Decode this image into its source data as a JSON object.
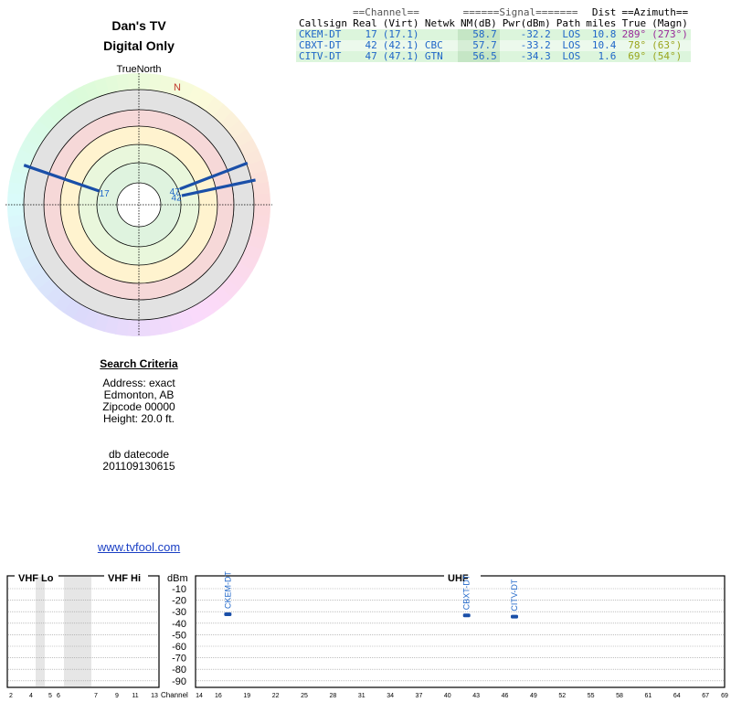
{
  "header": {
    "title_line1": "Dan's TV",
    "title_line2": "Digital Only",
    "true_north_label": "TrueNorth",
    "north_marker": "N"
  },
  "table": {
    "group_headers": {
      "channel": "==Channel==",
      "signal": "======Signal=======",
      "dist": "Dist",
      "azimuth": "==Azimuth=="
    },
    "columns": [
      "Callsign",
      "Real",
      "(Virt)",
      "Netwk",
      "NM(dB)",
      "Pwr(dBm)",
      "Path",
      "miles",
      "True",
      "(Magn)"
    ],
    "rows": [
      {
        "callsign": "CKEM-DT",
        "real": "17",
        "virt": "(17.1)",
        "netwk": "",
        "nm": "58.7",
        "pwr": "-32.2",
        "path": "LOS",
        "miles": "10.8",
        "true_az": "289°",
        "magn_az": "(273°)",
        "az_color": "#9a2b9a"
      },
      {
        "callsign": "CBXT-DT",
        "real": "42",
        "virt": "(42.1)",
        "netwk": "CBC",
        "nm": "57.7",
        "pwr": "-33.2",
        "path": "LOS",
        "miles": "10.4",
        "true_az": "78°",
        "magn_az": "(63°)",
        "az_color": "#9aa51d"
      },
      {
        "callsign": "CITV-DT",
        "real": "47",
        "virt": "(47.1)",
        "netwk": "GTN",
        "nm": "56.5",
        "pwr": "-34.3",
        "path": "LOS",
        "miles": "1.6",
        "true_az": "69°",
        "magn_az": "(54°)",
        "az_color": "#9aa51d"
      }
    ]
  },
  "polar": {
    "stations": [
      {
        "label": "17",
        "azimuth": 289,
        "nm": 58.7
      },
      {
        "label": "42",
        "azimuth": 78,
        "nm": 57.7
      },
      {
        "label": "47",
        "azimuth": 69,
        "nm": 56.5
      }
    ]
  },
  "criteria": {
    "title": "Search Criteria",
    "address": "Address: exact",
    "city": "Edmonton, AB",
    "zipcode": "Zipcode 00000",
    "height": "Height: 20.0 ft.",
    "datecode_label": "db datecode",
    "datecode": "201109130615"
  },
  "link": {
    "text": "www.tvfool.com"
  },
  "spectrum": {
    "vhf_lo_label": "VHF Lo",
    "vhf_hi_label": "VHF Hi",
    "uhf_label": "UHF",
    "y_unit": "dBm",
    "y_ticks": [
      "-10",
      "-20",
      "-30",
      "-40",
      "-50",
      "-60",
      "-70",
      "-80",
      "-90"
    ],
    "channel_label": "Channel",
    "vhf_ticks": [
      "2",
      "4",
      "5",
      "6",
      "7",
      "9",
      "11",
      "13"
    ],
    "uhf_ticks": [
      "14",
      "16",
      "19",
      "22",
      "25",
      "28",
      "31",
      "34",
      "37",
      "40",
      "43",
      "46",
      "49",
      "52",
      "55",
      "58",
      "61",
      "64",
      "67",
      "69"
    ],
    "signals": [
      {
        "callsign": "CKEM-DT",
        "channel": 17,
        "dbm": -32.2
      },
      {
        "callsign": "CBXT-DT",
        "channel": 42,
        "dbm": -33.2
      },
      {
        "callsign": "CITV-DT",
        "channel": 47,
        "dbm": -34.3
      }
    ]
  },
  "colors": {
    "link": "#1a3fc4",
    "station_text": "#1f66c8",
    "station_line": "#1a4fa8",
    "north": "#c0392b"
  }
}
